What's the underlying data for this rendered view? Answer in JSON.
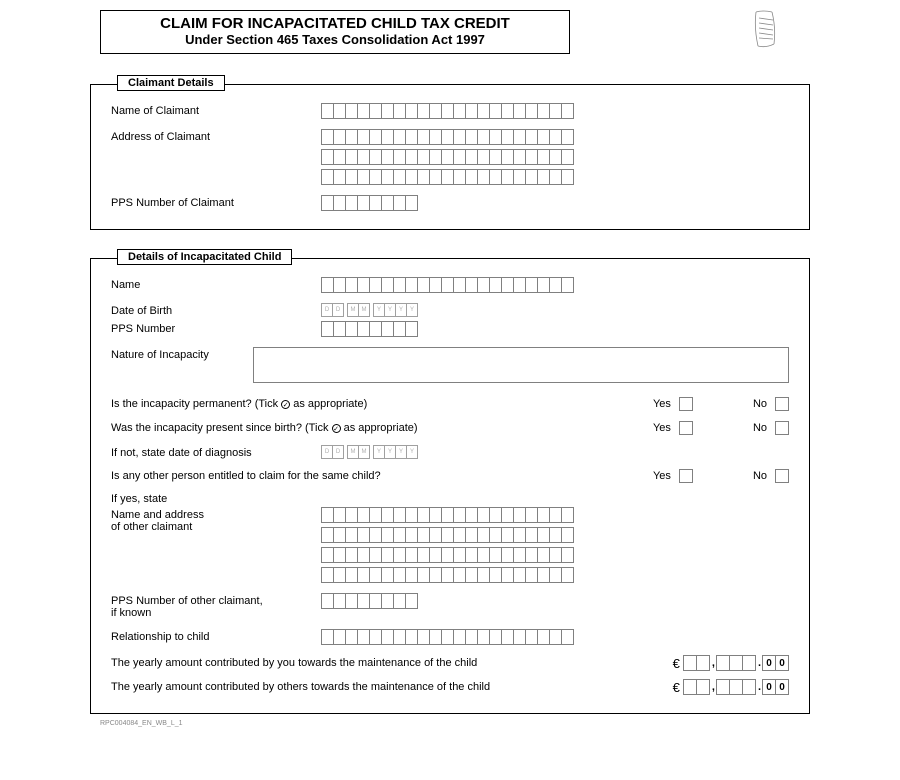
{
  "header": {
    "title_line1": "CLAIM FOR INCAPACITATED CHILD TAX CREDIT",
    "title_line2": "Under Section 465 Taxes Consolidation Act 1997"
  },
  "section1": {
    "title": "Claimant Details",
    "name_label": "Name of Claimant",
    "address_label": "Address of Claimant",
    "pps_label": "PPS Number of Claimant"
  },
  "section2": {
    "title": "Details of Incapacitated Child",
    "name_label": "Name",
    "dob_label": "Date of Birth",
    "pps_label": "PPS Number",
    "nature_label": "Nature of Incapacity",
    "q_permanent": "Is the incapacity permanent? (Tick",
    "q_permanent_suffix": "as appropriate)",
    "q_since_birth": "Was the incapacity present since birth? (Tick",
    "q_since_birth_suffix": "as appropriate)",
    "diagnosis_label": "If not, state date of diagnosis",
    "q_other_person": "Is any other person entitled to claim for the same child?",
    "if_yes_state": "If yes, state",
    "other_name_label_l1": "Name and address",
    "other_name_label_l2": "of other claimant",
    "other_pps_label_l1": "PPS Number of other claimant,",
    "other_pps_label_l2": "if known",
    "relation_label": "Relationship to child",
    "amount_you": "The yearly amount contributed by you towards the maintenance of the child",
    "amount_others": "The yearly amount contributed by others towards the maintenance of the child",
    "yes": "Yes",
    "no": "No",
    "date_placeholder": [
      "D",
      "D",
      "M",
      "M",
      "Y",
      "Y",
      "Y",
      "Y"
    ],
    "euro": "€",
    "amount_suffix": [
      "0",
      "0"
    ]
  },
  "footer": {
    "code": "RPC004084_EN_WB_L_1"
  },
  "layout": {
    "long_cells": 21,
    "pps_cells": 8,
    "address_rows": 3,
    "other_address_rows": 4
  }
}
